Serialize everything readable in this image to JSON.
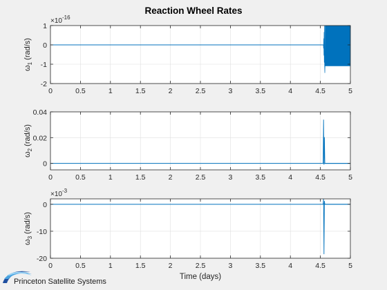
{
  "chart_data": {
    "type": "line",
    "title": "Reaction Wheel Rates",
    "xlabel": "Time (days)",
    "series_color": "#0072bd",
    "grid": true,
    "panels": [
      {
        "ylabel_symbol": "ω",
        "ylabel_sub": "1",
        "ylabel_unit": "(rad/s)",
        "exponent_base": "×10",
        "exponent_power": "-16",
        "xlim": [
          0,
          5
        ],
        "ylim": [
          -2,
          1
        ],
        "xticks": [
          0,
          0.5,
          1,
          1.5,
          2,
          2.5,
          3,
          3.5,
          4,
          4.5,
          5
        ],
        "xtick_labels": [
          "0",
          "0.5",
          "1",
          "1.5",
          "2",
          "2.5",
          "3",
          "3.5",
          "4",
          "4.5",
          "5"
        ],
        "yticks": [
          -2,
          -1,
          0,
          1
        ],
        "ytick_labels": [
          "-2",
          "-1",
          "0",
          "1"
        ],
        "flat_value": 0,
        "flat_until": 4.55,
        "burst": {
          "start": 4.55,
          "end": 5.0,
          "min": -1.1,
          "max": 1.0,
          "dip": -1.45
        }
      },
      {
        "ylabel_symbol": "ω",
        "ylabel_sub": "2",
        "ylabel_unit": "(rad/s)",
        "xlim": [
          0,
          5
        ],
        "ylim": [
          -0.005,
          0.04
        ],
        "xticks": [
          0,
          0.5,
          1,
          1.5,
          2,
          2.5,
          3,
          3.5,
          4,
          4.5,
          5
        ],
        "xtick_labels": [
          "0",
          "0.5",
          "1",
          "1.5",
          "2",
          "2.5",
          "3",
          "3.5",
          "4",
          "4.5",
          "5"
        ],
        "yticks": [
          0,
          0.02,
          0.04
        ],
        "ytick_labels": [
          "0",
          "0.02",
          "0.04"
        ],
        "flat_value": 0,
        "spike": {
          "x": 4.56,
          "min": -0.001,
          "max": 0.034
        }
      },
      {
        "ylabel_symbol": "ω",
        "ylabel_sub": "3",
        "ylabel_unit": "(rad/s)",
        "exponent_base": "×10",
        "exponent_power": "-3",
        "xlim": [
          0,
          5
        ],
        "ylim": [
          -20,
          2
        ],
        "xticks": [
          0,
          0.5,
          1,
          1.5,
          2,
          2.5,
          3,
          3.5,
          4,
          4.5,
          5
        ],
        "xtick_labels": [
          "0",
          "0.5",
          "1",
          "1.5",
          "2",
          "2.5",
          "3",
          "3.5",
          "4",
          "4.5",
          "5"
        ],
        "yticks": [
          -20,
          -10,
          0
        ],
        "ytick_labels": [
          "-20",
          "-10",
          "0"
        ],
        "flat_value": 0,
        "spike": {
          "x": 4.56,
          "min": -18.5,
          "max": 2
        }
      }
    ]
  },
  "logo": {
    "text": "Princeton Satellite Systems",
    "colors": [
      "#1f4fa0",
      "#4aa3df",
      "#9bd3f5"
    ]
  }
}
